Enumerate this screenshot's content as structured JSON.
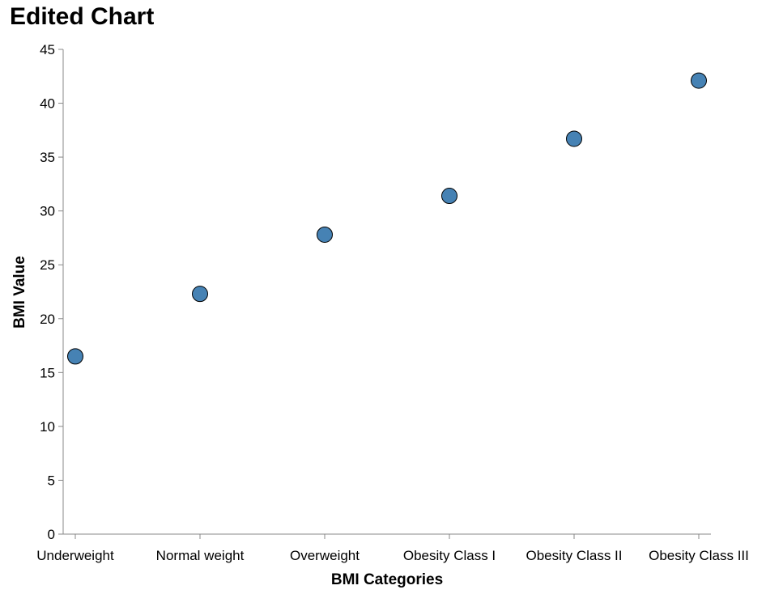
{
  "chart_data": {
    "type": "scatter",
    "title": "Edited Chart",
    "xlabel": "BMI Categories",
    "ylabel": "BMI Value",
    "categories": [
      "Underweight",
      "Normal weight",
      "Overweight",
      "Obesity Class I",
      "Obesity Class II",
      "Obesity Class III"
    ],
    "values": [
      16.5,
      22.3,
      27.8,
      31.4,
      36.7,
      42.1
    ],
    "ylim": [
      0,
      45
    ],
    "yticks": [
      0,
      5,
      10,
      15,
      20,
      25,
      30,
      35,
      40,
      45
    ],
    "grid": false,
    "point_color": "#4682b4",
    "point_stroke": "#000000",
    "axis_color": "#888888"
  }
}
